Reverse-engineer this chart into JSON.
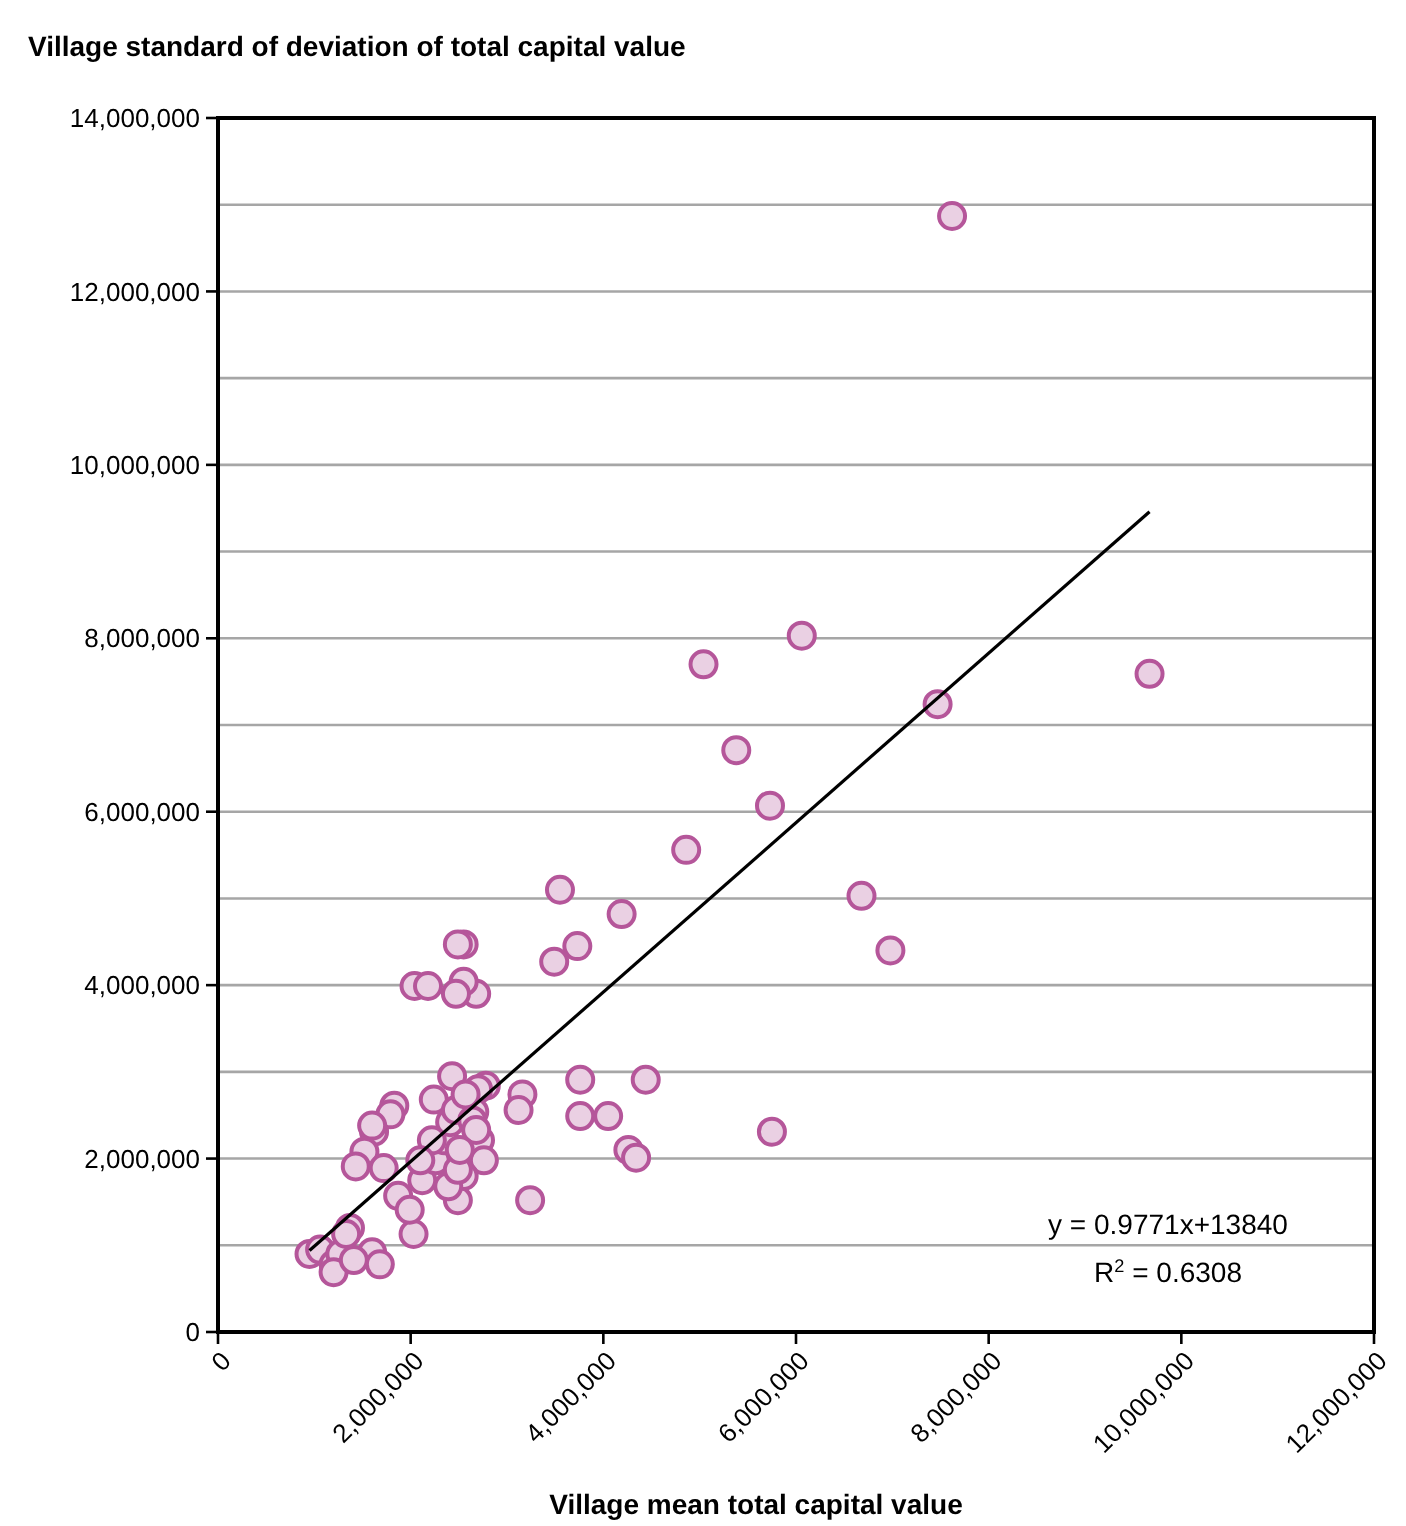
{
  "chart_data": {
    "type": "scatter",
    "title": "Village standard of deviation of total capital value",
    "xlabel": "Village mean total capital value",
    "xlim": [
      0,
      12000000
    ],
    "xticks": [
      0,
      {
        "value": 2000000,
        "label": "2,000,000"
      },
      {
        "value": 4000000,
        "label": "4,000,000"
      },
      {
        "value": 6000000,
        "label": "6,000,000"
      },
      {
        "value": 8000000,
        "label": "8,000,000"
      },
      {
        "value": 10000000,
        "label": "10,000,000"
      },
      {
        "value": 12000000,
        "label": "12,000,000"
      }
    ],
    "ylim": [
      0,
      14000000
    ],
    "yticks": [
      0,
      {
        "value": 1000000,
        "label": null
      },
      {
        "value": 2000000,
        "label": "2,000,000"
      },
      {
        "value": 3000000,
        "label": null
      },
      {
        "value": 4000000,
        "label": "4,000,000"
      },
      {
        "value": 5000000,
        "label": null
      },
      {
        "value": 6000000,
        "label": "6,000,000"
      },
      {
        "value": 7000000,
        "label": null
      },
      {
        "value": 8000000,
        "label": "8,000,000"
      },
      {
        "value": 9000000,
        "label": null
      },
      {
        "value": 10000000,
        "label": "10,000,000"
      },
      {
        "value": 11000000,
        "label": null
      },
      {
        "value": 12000000,
        "label": "12,000,000"
      },
      {
        "value": 13000000,
        "label": null
      },
      {
        "value": 14000000,
        "label": "14,000,000"
      }
    ],
    "grid": "y",
    "series": [
      {
        "marker": "circle",
        "color": "#b5569a",
        "x": [
          7620000,
          9670000,
          7470000,
          6060000,
          5040000,
          5380000,
          5730000,
          4860000,
          6680000,
          6980000,
          5750000,
          4190000,
          3550000,
          3730000,
          3490000,
          3760000,
          3760000,
          4050000,
          4440000,
          4260000,
          4340000,
          3240000,
          3160000,
          3120000,
          2780000,
          2680000,
          2550000,
          2490000,
          2550000,
          2470000,
          2040000,
          2180000,
          2240000,
          2430000,
          2700000,
          2660000,
          1830000,
          1790000,
          1620000,
          1600000,
          1520000,
          1430000,
          1720000,
          1870000,
          2030000,
          1990000,
          2120000,
          2260000,
          2350000,
          2410000,
          2470000,
          2570000,
          2640000,
          2720000,
          2760000,
          2490000,
          2550000,
          2680000,
          2220000,
          2100000,
          2390000,
          2490000,
          2510000,
          950000,
          1060000,
          1200000,
          1270000,
          1370000,
          1600000,
          1680000,
          1200000,
          1410000,
          1330000
        ],
        "values": [
          12870000,
          7590000,
          7240000,
          8030000,
          7700000,
          6710000,
          6070000,
          5560000,
          5030000,
          4400000,
          2310000,
          4820000,
          5100000,
          4450000,
          4270000,
          2910000,
          2490000,
          2490000,
          2910000,
          2100000,
          2010000,
          1520000,
          2740000,
          2560000,
          2840000,
          3900000,
          4470000,
          4470000,
          4040000,
          3900000,
          3990000,
          3990000,
          2680000,
          2950000,
          2800000,
          2540000,
          2610000,
          2510000,
          2310000,
          2380000,
          2080000,
          1910000,
          1890000,
          1570000,
          1130000,
          1410000,
          1750000,
          1980000,
          2210000,
          2420000,
          2560000,
          2740000,
          2440000,
          2210000,
          1980000,
          1520000,
          1800000,
          2330000,
          2210000,
          1980000,
          1680000,
          1870000,
          2100000,
          900000,
          950000,
          780000,
          900000,
          1200000,
          920000,
          780000,
          690000,
          830000,
          1130000
        ]
      },
      {
        "type": "line",
        "marker": "none",
        "color": "#000000",
        "x": [
          950000,
          9670000
        ],
        "values": [
          940000,
          9460000
        ]
      }
    ],
    "annotations": [
      "y = 0.9771x+13840",
      "R$^{2}$ = 0.6308"
    ]
  }
}
